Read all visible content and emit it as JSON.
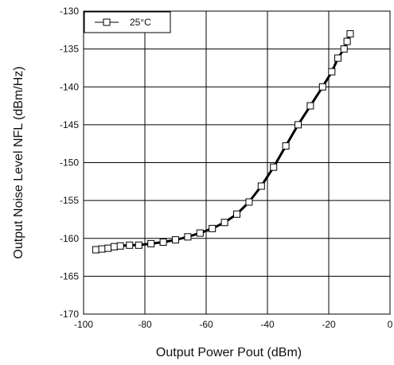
{
  "chart_data": {
    "type": "line",
    "xlabel": "Output Power  Pout (dBm)",
    "ylabel": "Output Noise Level  NFL (dBm/Hz)",
    "xlim": [
      -100,
      0
    ],
    "ylim": [
      -170,
      -130
    ],
    "xticks": [
      -100,
      -80,
      -60,
      -40,
      -20,
      0
    ],
    "yticks": [
      -130,
      -135,
      -140,
      -145,
      -150,
      -155,
      -160,
      -165,
      -170
    ],
    "xtick_labels": [
      "-100",
      "-80",
      "-60",
      "-40",
      "-20",
      "0"
    ],
    "ytick_labels": [
      "-130",
      "-135",
      "-140",
      "-145",
      "-150",
      "-155",
      "-160",
      "-165",
      "-170"
    ],
    "grid": true,
    "legend_position": "top-left",
    "series": [
      {
        "name": "25°C",
        "marker": "open-square",
        "color": "#000000",
        "x": [
          -96,
          -94,
          -92,
          -90,
          -88,
          -85,
          -82,
          -78,
          -74,
          -70,
          -66,
          -62,
          -58,
          -54,
          -50,
          -46,
          -42,
          -38,
          -34,
          -30,
          -26,
          -22,
          -19,
          -17,
          -15,
          -14,
          -13
        ],
        "y": [
          -161.5,
          -161.4,
          -161.3,
          -161.1,
          -161.0,
          -160.9,
          -160.9,
          -160.7,
          -160.5,
          -160.2,
          -159.8,
          -159.3,
          -158.7,
          -157.9,
          -156.8,
          -155.2,
          -153.1,
          -150.6,
          -147.8,
          -145.0,
          -142.5,
          -140.0,
          -138.0,
          -136.2,
          -135.0,
          -134.0,
          -133.0
        ]
      }
    ]
  }
}
